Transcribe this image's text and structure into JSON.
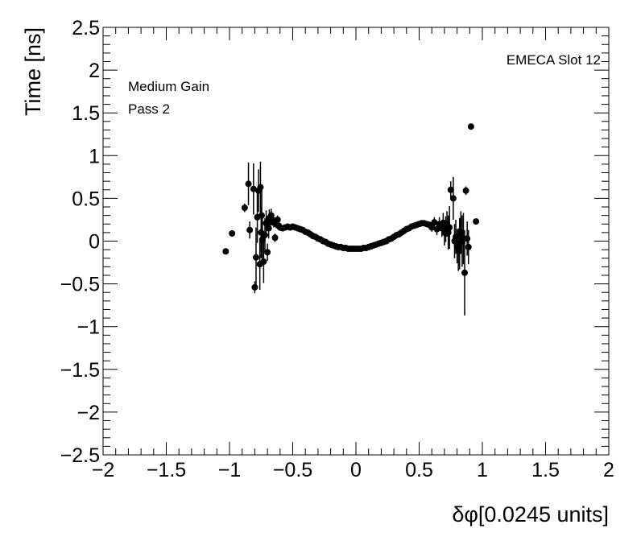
{
  "chart_data": {
    "type": "scatter",
    "title": "",
    "xlabel": "δφ[0.0245 units]",
    "ylabel": "Time [ns]",
    "xlim": [
      -2,
      2
    ],
    "ylim": [
      -2.5,
      2.5
    ],
    "x_ticks": [
      -2,
      -1.5,
      -1,
      -0.5,
      0,
      0.5,
      1,
      1.5,
      2
    ],
    "x_tick_labels": [
      "−2",
      "−1.5",
      "−1",
      "−0.5",
      "0",
      "0.5",
      "1",
      "1.5",
      "2"
    ],
    "y_ticks": [
      -2.5,
      -2,
      -1.5,
      -1,
      -0.5,
      0,
      0.5,
      1,
      1.5,
      2,
      2.5
    ],
    "y_tick_labels": [
      "−2.5",
      "−2",
      "−1.5",
      "−1",
      "−0.5",
      "0",
      "0.5",
      "1",
      "1.5",
      "2",
      "2.5"
    ],
    "grid": false,
    "legend": null,
    "annotations": {
      "top_right": "EMECA Slot 12",
      "top_left_line1": "Medium Gain",
      "top_left_line2": "Pass 2"
    },
    "series": [
      {
        "color": "#000000",
        "marker": "circle",
        "x": [
          -1.03,
          -0.98,
          -0.88,
          -0.85,
          -0.84,
          -0.81,
          -0.8,
          -0.79,
          -0.78,
          -0.77,
          -0.76,
          -0.755,
          -0.75,
          -0.745,
          -0.74,
          -0.73,
          -0.72,
          -0.71,
          -0.7,
          -0.69,
          -0.685,
          -0.68,
          -0.67,
          -0.66,
          -0.65,
          -0.64,
          -0.63,
          -0.62,
          -0.61,
          -0.6,
          -0.58,
          -0.56,
          -0.54,
          -0.52,
          -0.5,
          -0.48,
          -0.46,
          -0.44,
          -0.42,
          -0.4,
          -0.38,
          -0.36,
          -0.34,
          -0.32,
          -0.3,
          -0.28,
          -0.26,
          -0.24,
          -0.22,
          -0.2,
          -0.18,
          -0.16,
          -0.14,
          -0.12,
          -0.1,
          -0.08,
          -0.06,
          -0.04,
          -0.02,
          0,
          0.02,
          0.04,
          0.06,
          0.08,
          0.1,
          0.12,
          0.14,
          0.16,
          0.18,
          0.2,
          0.22,
          0.24,
          0.26,
          0.28,
          0.3,
          0.32,
          0.34,
          0.36,
          0.38,
          0.4,
          0.42,
          0.44,
          0.46,
          0.48,
          0.5,
          0.52,
          0.54,
          0.56,
          0.58,
          0.6,
          0.62,
          0.64,
          0.66,
          0.68,
          0.69,
          0.7,
          0.71,
          0.72,
          0.73,
          0.74,
          0.75,
          0.77,
          0.78,
          0.79,
          0.8,
          0.81,
          0.82,
          0.83,
          0.84,
          0.85,
          0.86,
          0.87,
          0.88,
          0.89,
          0.91,
          0.95
        ],
        "y": [
          -0.12,
          0.09,
          0.39,
          0.67,
          0.13,
          0.61,
          -0.54,
          -0.19,
          0.28,
          0.59,
          -0.27,
          0.63,
          0.1,
          0.3,
          0.02,
          -0.24,
          0.07,
          0.21,
          -0.13,
          0.15,
          0.27,
          0.22,
          0.3,
          0.25,
          0.22,
          0.04,
          0.2,
          0.25,
          0.18,
          0.16,
          0.15,
          0.16,
          0.17,
          0.16,
          0.17,
          0.16,
          0.15,
          0.14,
          0.13,
          0.11,
          0.1,
          0.08,
          0.06,
          0.05,
          0.03,
          0.02,
          0.0,
          -0.01,
          -0.03,
          -0.04,
          -0.05,
          -0.06,
          -0.07,
          -0.07,
          -0.08,
          -0.08,
          -0.09,
          -0.09,
          -0.09,
          -0.09,
          -0.09,
          -0.09,
          -0.08,
          -0.08,
          -0.07,
          -0.06,
          -0.05,
          -0.04,
          -0.03,
          -0.02,
          -0.01,
          0.0,
          0.02,
          0.03,
          0.05,
          0.07,
          0.08,
          0.1,
          0.12,
          0.14,
          0.15,
          0.17,
          0.18,
          0.19,
          0.2,
          0.21,
          0.21,
          0.2,
          0.19,
          0.16,
          0.22,
          0.14,
          0.2,
          0.15,
          0.21,
          0.1,
          0.14,
          0.2,
          0.1,
          0.16,
          0.6,
          0.5,
          0.0,
          0.05,
          -0.06,
          -0.1,
          -0.03,
          0.1,
          0.0,
          0.03,
          -0.37,
          0.59,
          0.03,
          -0.07,
          1.34,
          0.23
        ],
        "yerr": [
          0.03,
          0.03,
          0.05,
          0.25,
          0.1,
          0.3,
          0.07,
          0.35,
          0.3,
          0.25,
          0.3,
          0.3,
          0.3,
          0.35,
          0.3,
          0.25,
          0.2,
          0.15,
          0.1,
          0.12,
          0.1,
          0.1,
          0.08,
          0.07,
          0.06,
          0.05,
          0.05,
          0.05,
          0.04,
          0.04,
          0.03,
          0.03,
          0.03,
          0.03,
          0.03,
          0.03,
          0.02,
          0.02,
          0.02,
          0.02,
          0.02,
          0.02,
          0.02,
          0.02,
          0.02,
          0.02,
          0.02,
          0.02,
          0.02,
          0.02,
          0.02,
          0.02,
          0.02,
          0.02,
          0.02,
          0.02,
          0.02,
          0.02,
          0.02,
          0.02,
          0.02,
          0.02,
          0.02,
          0.02,
          0.02,
          0.02,
          0.02,
          0.02,
          0.02,
          0.02,
          0.02,
          0.02,
          0.02,
          0.02,
          0.02,
          0.02,
          0.02,
          0.02,
          0.02,
          0.02,
          0.02,
          0.02,
          0.02,
          0.02,
          0.02,
          0.02,
          0.03,
          0.03,
          0.04,
          0.05,
          0.06,
          0.07,
          0.08,
          0.1,
          0.12,
          0.15,
          0.15,
          0.15,
          0.2,
          0.25,
          0.1,
          0.25,
          0.2,
          0.2,
          0.2,
          0.25,
          0.3,
          0.25,
          0.3,
          0.3,
          0.5,
          0.05,
          0.2,
          0.2,
          0.03,
          0.03
        ]
      }
    ]
  }
}
